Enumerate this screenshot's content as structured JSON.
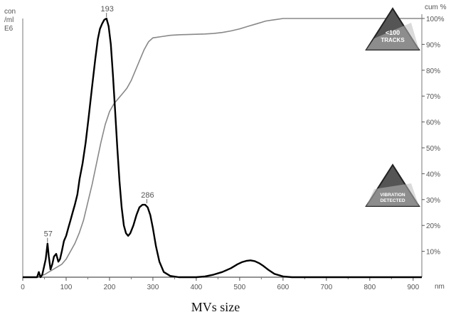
{
  "chart_data": {
    "type": "line",
    "xlabel": "MVs size",
    "x_unit": "nm",
    "y_left_label": [
      "con",
      "/ml",
      "E6"
    ],
    "y_right_label": "cum %",
    "xlim": [
      0,
      920
    ],
    "ylim_left": [
      0,
      1
    ],
    "ylim_right": [
      0,
      100
    ],
    "x_ticks": [
      "0",
      "100",
      "200",
      "300",
      "400",
      "500",
      "600",
      "700",
      "800",
      "900"
    ],
    "y_right_ticks": [
      "10%",
      "20%",
      "30%",
      "40%",
      "50%",
      "60%",
      "70%",
      "80%",
      "90%",
      "100%"
    ],
    "peak_labels": [
      {
        "text": "57",
        "x": 57,
        "y": 0.13
      },
      {
        "text": "193",
        "x": 193,
        "y": 1.0
      },
      {
        "text": "286",
        "x": 286,
        "y": 0.28
      }
    ],
    "series": [
      {
        "role": "concentration",
        "color": "#000000",
        "x": [
          0,
          33,
          37,
          41,
          45,
          49,
          53,
          57,
          60,
          64,
          68,
          72,
          77,
          82,
          86,
          90,
          95,
          100,
          105,
          110,
          115,
          120,
          126,
          131,
          138,
          145,
          152,
          160,
          167,
          173,
          178,
          183,
          188,
          193,
          198,
          203,
          208,
          213,
          218,
          223,
          228,
          233,
          238,
          243,
          248,
          255,
          262,
          269,
          276,
          282,
          288,
          294,
          300,
          307,
          315,
          325,
          340,
          360,
          380,
          400,
          420,
          440,
          460,
          480,
          495,
          505,
          515,
          525,
          535,
          545,
          555,
          565,
          580,
          600,
          620,
          640,
          700,
          800,
          900,
          920
        ],
        "y": [
          0,
          0.0,
          0.02,
          0.0,
          0.01,
          0.04,
          0.07,
          0.13,
          0.08,
          0.03,
          0.05,
          0.08,
          0.09,
          0.06,
          0.07,
          0.1,
          0.14,
          0.16,
          0.19,
          0.22,
          0.25,
          0.28,
          0.32,
          0.38,
          0.44,
          0.52,
          0.62,
          0.74,
          0.84,
          0.92,
          0.96,
          0.98,
          0.995,
          1.0,
          0.97,
          0.9,
          0.78,
          0.64,
          0.5,
          0.37,
          0.27,
          0.2,
          0.17,
          0.16,
          0.17,
          0.2,
          0.24,
          0.27,
          0.28,
          0.28,
          0.27,
          0.24,
          0.19,
          0.12,
          0.06,
          0.02,
          0.005,
          0.0,
          0.0,
          0.0,
          0.003,
          0.01,
          0.02,
          0.035,
          0.05,
          0.058,
          0.063,
          0.065,
          0.062,
          0.054,
          0.043,
          0.03,
          0.013,
          0.003,
          0.0,
          0.0,
          0.0,
          0.0,
          0.0,
          0.0
        ]
      },
      {
        "role": "cumulative",
        "axis": "right",
        "color": "#888888",
        "x": [
          0,
          30,
          40,
          50,
          60,
          70,
          80,
          90,
          100,
          110,
          120,
          130,
          140,
          150,
          160,
          170,
          180,
          190,
          200,
          210,
          220,
          230,
          240,
          250,
          260,
          270,
          280,
          290,
          300,
          320,
          340,
          360,
          380,
          400,
          420,
          440,
          460,
          480,
          500,
          520,
          540,
          560,
          580,
          600,
          700,
          800,
          900,
          920
        ],
        "y": [
          0,
          0,
          0.5,
          1,
          2,
          3,
          4,
          5,
          7,
          10,
          13,
          17,
          22,
          29,
          36,
          44,
          52,
          59,
          64,
          67,
          69,
          71,
          73,
          76,
          80,
          84,
          88,
          91,
          92.5,
          93,
          93.5,
          93.7,
          93.8,
          93.9,
          94,
          94.2,
          94.6,
          95.2,
          96,
          97,
          98,
          99,
          99.5,
          100,
          100,
          100,
          100,
          100
        ]
      }
    ],
    "warnings": [
      {
        "lines": [
          "<100",
          "TRACKS"
        ],
        "colors": [
          "#555555",
          "#bbbbbb"
        ]
      },
      {
        "lines": [
          "VIBRATION",
          "DETECTED"
        ],
        "colors": [
          "#555555",
          "#bbbbbb"
        ]
      }
    ]
  }
}
